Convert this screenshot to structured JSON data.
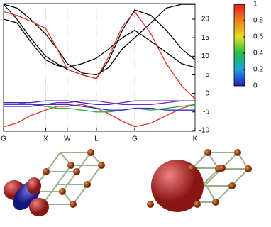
{
  "chart_data": {
    "type": "line",
    "x": [
      0,
      0.07,
      0.14,
      0.22,
      0.28,
      0.333,
      0.41,
      0.485,
      0.55,
      0.62,
      0.685,
      0.77,
      0.85,
      0.93,
      1
    ],
    "xlim": [
      0,
      1
    ],
    "xticks": [
      {
        "value": 0,
        "label": "G"
      },
      {
        "value": 0.22,
        "label": "X"
      },
      {
        "value": 0.333,
        "label": "W"
      },
      {
        "value": 0.485,
        "label": "L"
      },
      {
        "value": 0.685,
        "label": "G"
      },
      {
        "value": 1,
        "label": "K"
      }
    ],
    "xgrid": true,
    "ylim": [
      -10.2,
      24.2
    ],
    "yticks": [
      -10,
      -5,
      0,
      5,
      10,
      15,
      20
    ],
    "series": [
      {
        "color": "#000000",
        "values": [
          24,
          20,
          15,
          10,
          8,
          6.5,
          5,
          4,
          9,
          17,
          22.5,
          21,
          17,
          12,
          9
        ]
      },
      {
        "color": "#000000",
        "values": [
          24,
          23,
          20,
          16,
          12,
          8,
          5.5,
          5,
          7,
          12,
          15,
          19,
          23,
          24,
          24
        ]
      },
      {
        "color": "#000000",
        "values": [
          20,
          19,
          14,
          9,
          7.5,
          7,
          8,
          9.5,
          12,
          15,
          17,
          14,
          11,
          8,
          7
        ]
      },
      {
        "color": "#e0302a",
        "values": [
          22,
          21,
          19.5,
          17.5,
          12,
          6.5,
          5,
          4,
          10,
          18,
          22,
          16,
          8,
          2,
          -1.5
        ]
      },
      {
        "color": "#e0302a",
        "values": [
          -9,
          -8,
          -6,
          -4.5,
          -3.5,
          -3.5,
          -3,
          -4,
          -5.5,
          -7.5,
          -9,
          -8,
          -6,
          -4,
          -3
        ]
      },
      {
        "color": "#30b030",
        "values": [
          -2.5,
          -2.5,
          -3,
          -3.5,
          -4,
          -4,
          -4.5,
          -5,
          -5,
          -4.5,
          -4,
          -4.5,
          -4,
          -3.5,
          -3
        ]
      },
      {
        "color": "#3030d0",
        "values": [
          -3.5,
          -3.5,
          -3.5,
          -3,
          -3,
          -3,
          -3.5,
          -4,
          -4.5,
          -4.5,
          -4,
          -4,
          -4.5,
          -4.5,
          -4.5
        ]
      },
      {
        "color": "#8020c0",
        "values": [
          -3,
          -3,
          -3,
          -3,
          -2.5,
          -2.5,
          -2,
          -2,
          -2.5,
          -3,
          -3,
          -3,
          -2.5,
          -2,
          -2
        ]
      },
      {
        "color": "#3030d0",
        "values": [
          -2.5,
          -2.5,
          -2.5,
          -2,
          -2,
          -2,
          -2.5,
          -3,
          -3,
          -2.5,
          -2,
          -2,
          -2,
          -2,
          -2
        ]
      }
    ],
    "colorbar": {
      "lim": [
        0,
        1
      ],
      "ticks": [
        0,
        0.2,
        0.4,
        0.6,
        0.8,
        1
      ],
      "colors": [
        "#2020c0",
        "#20a0e0",
        "#20c040",
        "#e0e020",
        "#f08020",
        "#e02020"
      ]
    }
  }
}
